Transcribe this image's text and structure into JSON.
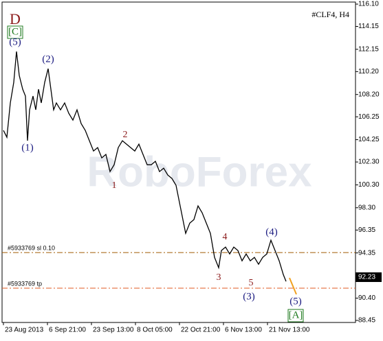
{
  "chart_data": {
    "type": "line",
    "title": "#CLF4, H4",
    "watermark": "RoboForex",
    "x": [
      2,
      7,
      12,
      17,
      21,
      25,
      30,
      34,
      37,
      40,
      45,
      49,
      53,
      57,
      62,
      67,
      71,
      75,
      79,
      85,
      91,
      97,
      103,
      109,
      115,
      121,
      127,
      133,
      139,
      145,
      151,
      157,
      163,
      169,
      175,
      181,
      187,
      193,
      199,
      205,
      211,
      217,
      223,
      229,
      235,
      241,
      247,
      253,
      259,
      263,
      267,
      273,
      279,
      285,
      291,
      297,
      303,
      309,
      315,
      319,
      325,
      331,
      337,
      343,
      349,
      355,
      361,
      367,
      373,
      379,
      385,
      391,
      397,
      403,
      409,
      413
    ],
    "series": [
      {
        "color": "#000000",
        "values": [
          105.06,
          104.46,
          107.46,
          109.26,
          111.96,
          109.86,
          108.66,
          108.06,
          104.16,
          106.86,
          108.06,
          106.86,
          108.66,
          107.46,
          109.26,
          110.46,
          108.66,
          106.86,
          107.46,
          106.86,
          107.46,
          106.56,
          105.96,
          106.86,
          105.66,
          105.06,
          104.16,
          103.26,
          103.56,
          102.66,
          102.96,
          101.46,
          102.06,
          103.56,
          104.16,
          103.86,
          103.56,
          103.26,
          103.86,
          102.96,
          102.06,
          102.06,
          102.36,
          101.46,
          101.76,
          101.16,
          100.86,
          100.26,
          98.46,
          97.26,
          96.06,
          96.96,
          97.26,
          98.46,
          97.86,
          96.96,
          96.06,
          93.96,
          93.06,
          94.56,
          94.86,
          94.26,
          94.86,
          94.56,
          93.66,
          94.26,
          93.66,
          93.96,
          93.36,
          93.96,
          94.26,
          95.46,
          94.56,
          93.66,
          92.46,
          91.86
        ]
      }
    ],
    "xlim": [
      0,
      514
    ],
    "xticks": [
      {
        "value": 2,
        "label": "23 Aug 2013"
      },
      {
        "value": 66,
        "label": "6 Sep 21:00"
      },
      {
        "value": 130,
        "label": "23 Sep 13:00"
      },
      {
        "value": 194,
        "label": "8 Oct 05:00"
      },
      {
        "value": 258,
        "label": "22 Oct 21:00"
      },
      {
        "value": 322,
        "label": "6 Nov 13:00"
      },
      {
        "value": 386,
        "label": "21 Nov 13:00"
      }
    ],
    "ylim": [
      88.27,
      116.28
    ],
    "yticks": [
      {
        "value": 116.1,
        "label": "116.10"
      },
      114.15,
      112.15,
      {
        "value": 110.2,
        "label": "110.20"
      },
      {
        "value": 108.2,
        "label": "108.20"
      },
      106.25,
      104.25,
      {
        "value": 102.3,
        "label": "102.30"
      },
      {
        "value": 100.3,
        "label": "100.30"
      },
      {
        "value": 98.3,
        "label": "98.30"
      },
      96.35,
      94.35,
      {
        "value": 90.4,
        "label": "90.40"
      },
      88.45
    ],
    "last_price": 92.23,
    "order_lines": [
      {
        "label": "#5933769 sl 0.10",
        "value": 94.38,
        "color": "#a05a00"
      },
      {
        "label": "#5933769 tp",
        "value": 91.27,
        "color": "#e05a20"
      }
    ],
    "annotations": [
      "D",
      "[C]",
      "(5)",
      "(2)",
      "(1)",
      "2",
      "1",
      "4",
      "3",
      "5",
      "(4)",
      "(3)",
      "(5)",
      "[A]"
    ]
  }
}
